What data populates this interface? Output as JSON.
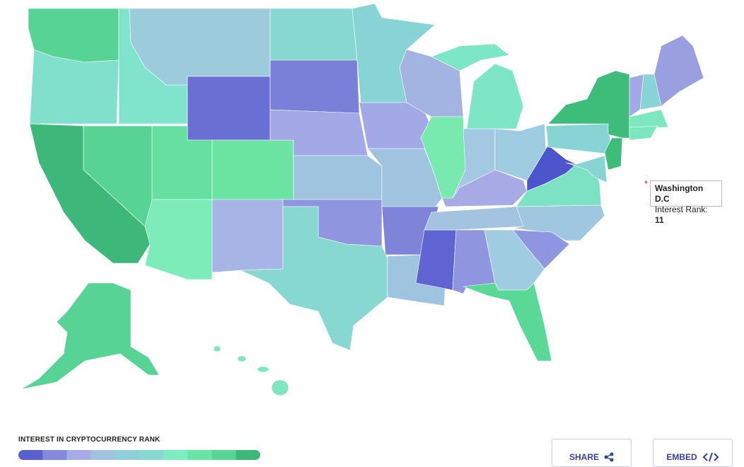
{
  "tooltip": {
    "title": "Washington D.C",
    "label": "Interest Rank:",
    "value": 11
  },
  "legend": {
    "title": "INTEREST IN CRYPTOCURRENCY RANK",
    "colors": [
      "#5a5fcf",
      "#8489da",
      "#a6aae7",
      "#9fc4e0",
      "#8ecfda",
      "#86d8d0",
      "#7eecc0",
      "#69e4a5",
      "#57d495",
      "#3db87a"
    ]
  },
  "buttons": {
    "share": "SHARE",
    "embed": "EMBED"
  }
}
